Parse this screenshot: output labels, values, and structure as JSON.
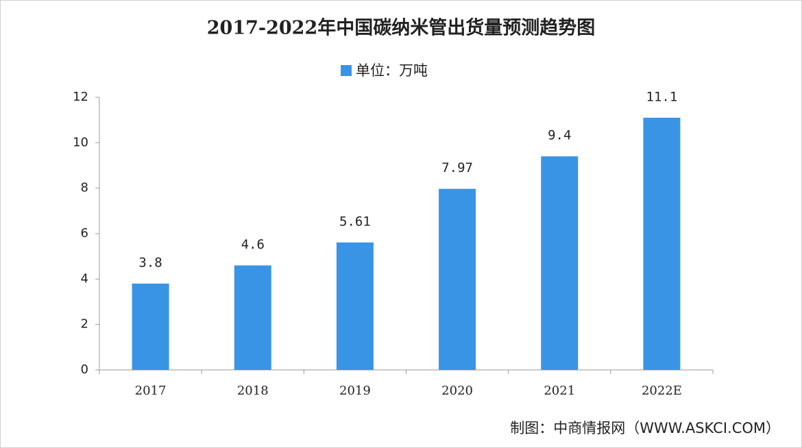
{
  "chart_data": {
    "type": "bar",
    "title": "2017-2022年中国碳纳米管出货量预测趋势图",
    "categories": [
      "2017",
      "2018",
      "2019",
      "2020",
      "2021",
      "2022E"
    ],
    "series": [
      {
        "name": "单位：万吨",
        "color": "#3a94e6",
        "values": [
          3.8,
          4.6,
          5.61,
          7.97,
          9.4,
          11.1
        ]
      }
    ],
    "ylim": [
      0,
      12
    ],
    "yticks": [
      0,
      2,
      4,
      6,
      8,
      10,
      12
    ],
    "source": "制图：中商情报网（WWW.ASKCI.COM）"
  }
}
